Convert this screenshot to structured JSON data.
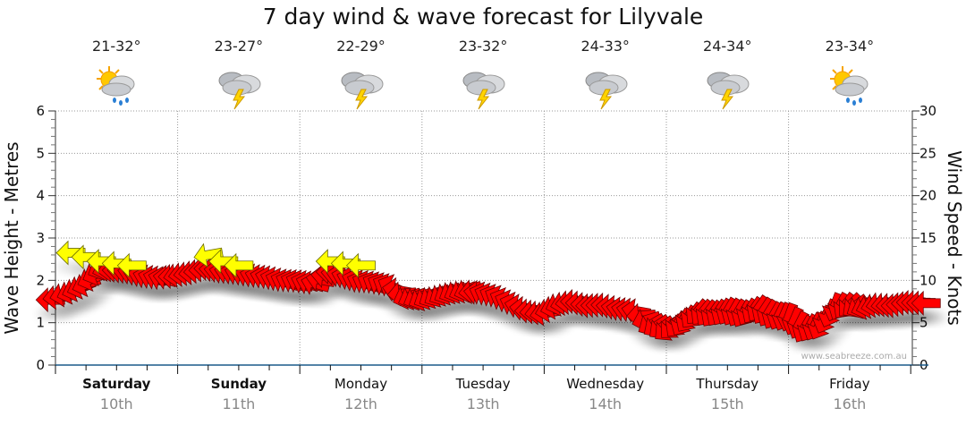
{
  "title": "7 day wind & wave forecast for Lilyvale",
  "days": [
    {
      "name": "Saturday",
      "date": "10th",
      "temp": "21-32°",
      "icon": "sun-cloud-rain-icon",
      "bold": true
    },
    {
      "name": "Sunday",
      "date": "11th",
      "temp": "23-27°",
      "icon": "cloud-lightning-icon",
      "bold": true
    },
    {
      "name": "Monday",
      "date": "12th",
      "temp": "22-29°",
      "icon": "cloud-lightning-icon",
      "bold": false
    },
    {
      "name": "Tuesday",
      "date": "13th",
      "temp": "23-32°",
      "icon": "cloud-lightning-icon",
      "bold": false
    },
    {
      "name": "Wednesday",
      "date": "14th",
      "temp": "24-33°",
      "icon": "cloud-lightning-icon",
      "bold": false
    },
    {
      "name": "Thursday",
      "date": "15th",
      "temp": "24-34°",
      "icon": "cloud-lightning-icon",
      "bold": false
    },
    {
      "name": "Friday",
      "date": "16th",
      "temp": "23-34°",
      "icon": "sun-cloud-rain-icon",
      "bold": false
    }
  ],
  "watermark": "www.seabreeze.com.au",
  "chart_data": {
    "type": "scatter",
    "title": "7 day wind & wave forecast for Lilyvale",
    "ylabel_left": "Wave Height - Metres",
    "ylabel_right": "Wind Speed - Knots",
    "ylim_left": [
      0,
      6
    ],
    "ylim_right": [
      0,
      30
    ],
    "yticks_left": [
      0,
      1,
      2,
      3,
      4,
      5,
      6
    ],
    "yticks_right": [
      0,
      5,
      10,
      15,
      20,
      25,
      30
    ],
    "x_unit": "hours from Saturday 00:00",
    "xlim": [
      0,
      168
    ],
    "grid": true,
    "colors": {
      "wind": "#ff0000",
      "wave": "#ffff00",
      "axis": "#1a5a8a"
    },
    "wind": {
      "name": "Wind speed (knots)",
      "hours": [
        -1,
        3,
        6,
        9,
        12,
        15,
        18,
        21,
        24,
        27,
        30,
        33,
        36,
        39,
        42,
        45,
        48,
        51,
        54,
        57,
        60,
        63,
        66,
        69,
        72,
        75,
        78,
        81,
        84,
        87,
        90,
        93,
        96,
        99,
        102,
        105,
        108,
        111,
        114,
        117,
        120,
        123,
        126,
        129,
        132,
        135,
        138,
        141,
        144,
        147,
        150,
        153,
        156,
        159,
        162,
        165,
        168,
        171
      ],
      "knots": [
        7.7,
        8.6,
        9.5,
        11.4,
        11.2,
        10.9,
        10.4,
        10.2,
        10.6,
        10.9,
        11.4,
        11.0,
        10.8,
        10.5,
        10.3,
        9.9,
        9.8,
        9.6,
        11.0,
        10.4,
        9.8,
        9.6,
        9.3,
        8.0,
        7.8,
        8.2,
        8.6,
        8.8,
        8.4,
        8.0,
        7.2,
        6.4,
        6.1,
        7.2,
        7.5,
        7.0,
        7.1,
        6.6,
        6.4,
        4.8,
        4.2,
        5.0,
        6.2,
        6.0,
        6.3,
        6.0,
        6.6,
        5.8,
        5.6,
        4.2,
        4.6,
        6.8,
        7.0,
        6.8,
        7.2,
        7.0,
        7.4,
        7.3
      ],
      "arrow_angle_deg": [
        0,
        -20,
        -20,
        -25,
        0,
        10,
        15,
        15,
        -10,
        -5,
        0,
        10,
        15,
        15,
        15,
        20,
        20,
        15,
        0,
        15,
        20,
        25,
        25,
        -20,
        -25,
        -30,
        -25,
        -20,
        20,
        25,
        20,
        0,
        -10,
        -20,
        0,
        0,
        0,
        10,
        10,
        -30,
        -40,
        -60,
        -50,
        -55,
        -60,
        -60,
        -55,
        -60,
        -70,
        -60,
        -65,
        -70,
        -45,
        -20,
        -10,
        0,
        0,
        0
      ]
    },
    "waves": {
      "name": "Wave (m)",
      "hours": [
        3,
        6,
        9,
        12,
        15,
        30,
        33,
        36,
        54,
        57,
        60
      ],
      "metres": [
        2.65,
        2.55,
        2.45,
        2.4,
        2.35,
        2.6,
        2.45,
        2.35,
        2.45,
        2.4,
        2.35
      ],
      "arrow_angle_deg": [
        0,
        0,
        0,
        0,
        0,
        -10,
        0,
        0,
        0,
        0,
        0
      ]
    }
  }
}
